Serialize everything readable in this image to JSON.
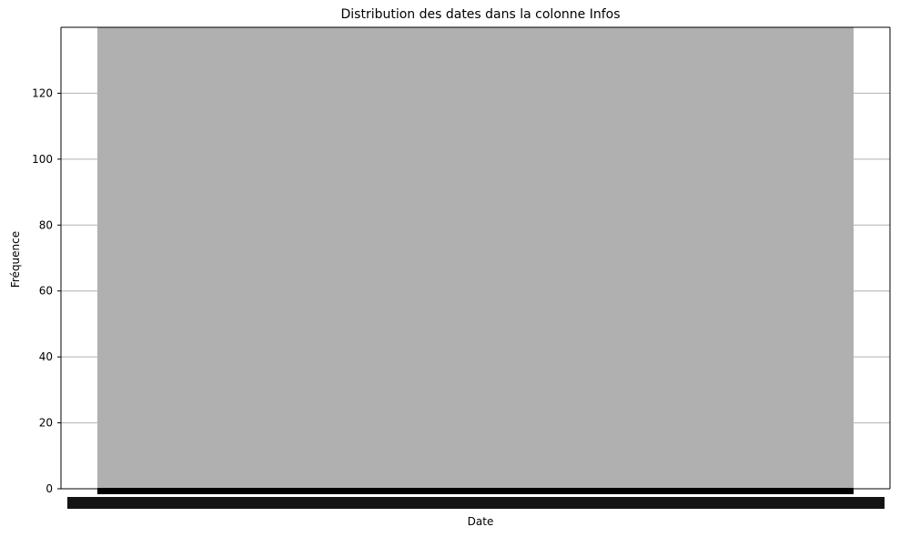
{
  "chart_data": {
    "type": "bar",
    "title": "Distribution des dates dans la colonne Infos",
    "xlabel": "Date",
    "ylabel": "Fréquence",
    "ylim": [
      0,
      140
    ],
    "yticks": [
      0,
      20,
      40,
      60,
      80,
      100,
      120
    ],
    "grid": "horizontal",
    "legend": "none",
    "colors": {
      "bar": "#b0b0b0",
      "grid": "#b0b0b0",
      "axis": "#000000",
      "tick_overlap": "#000000"
    },
    "bars": [
      {
        "value": 140,
        "label_note": "x tick labels overlap and are unreadable"
      }
    ]
  }
}
